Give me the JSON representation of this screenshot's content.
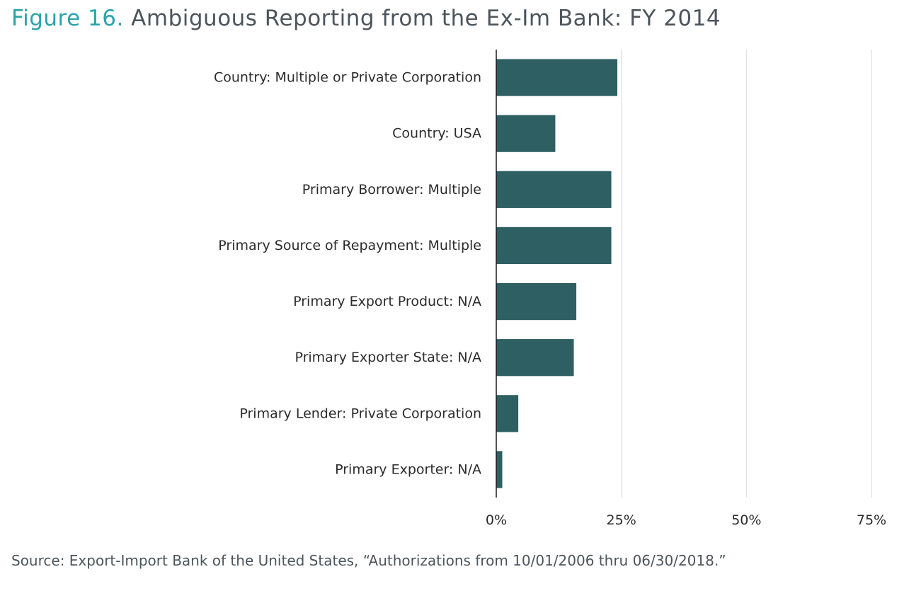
{
  "title": {
    "figure_number": "Figure 16.",
    "text": "Ambiguous Reporting from the Ex-Im Bank: FY 2014"
  },
  "source": "Source: Export-Import Bank of the United States, “Authorizations from 10/01/2006 thru 06/30/2018.”",
  "colors": {
    "bar": "#2e5f63",
    "title_accent": "#2aa3ad",
    "title_text": "#4d555c",
    "grid": "#d9d9d9",
    "axis": "#1a1a1a"
  },
  "chart_data": {
    "type": "bar",
    "orientation": "horizontal",
    "categories": [
      "Country: Multiple or Private Corporation",
      "Country: USA",
      "Primary Borrower: Multiple",
      "Primary Source of Repayment: Multiple",
      "Primary Export Product: N/A",
      "Primary Exporter State: N/A",
      "Primary Lender: Private Corporation",
      "Primary Exporter: N/A"
    ],
    "values": [
      24.2,
      11.8,
      23.0,
      23.0,
      16.0,
      15.5,
      4.4,
      1.2
    ],
    "xlim": [
      0,
      75
    ],
    "xticks": [
      0,
      25,
      50,
      75
    ],
    "xtick_labels": [
      "0%",
      "25%",
      "50%",
      "75%"
    ],
    "grid": true
  }
}
